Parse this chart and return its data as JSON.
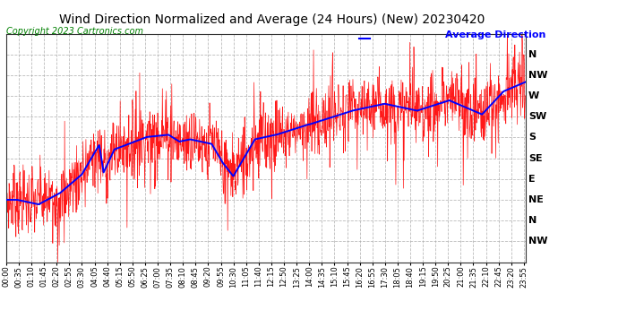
{
  "title": "Wind Direction Normalized and Average (24 Hours) (New) 20230420",
  "copyright": "Copyright 2023 Cartronics.com",
  "legend_label": "Average Direction",
  "legend_color": "blue",
  "raw_color": "red",
  "avg_color": "blue",
  "background_color": "#ffffff",
  "ytick_labels": [
    "N",
    "NW",
    "W",
    "SW",
    "S",
    "SE",
    "E",
    "NE",
    "N",
    "NW"
  ],
  "ytick_values": [
    360,
    315,
    270,
    225,
    180,
    135,
    90,
    45,
    0,
    -45
  ],
  "ylim": [
    -90,
    405
  ],
  "figsize": [
    6.9,
    3.75
  ],
  "dpi": 100,
  "title_fontsize": 10,
  "axis_fontsize": 6,
  "copyright_fontsize": 7,
  "legend_fontsize": 8,
  "grid_color": "#aaaaaa",
  "grid_style": "--",
  "grid_alpha": 0.8
}
